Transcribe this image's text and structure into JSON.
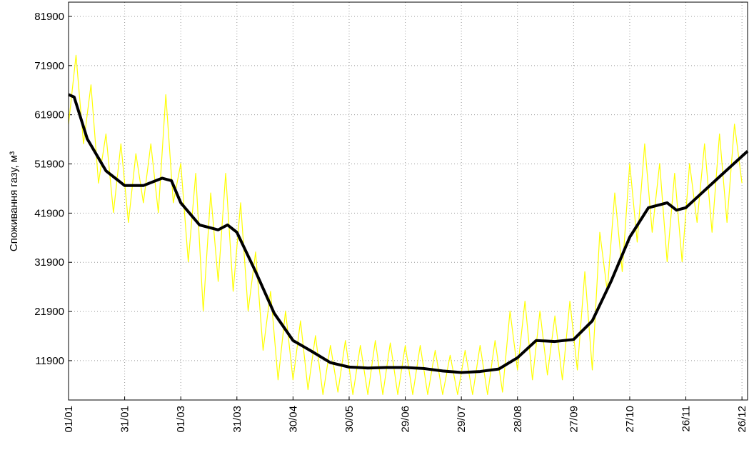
{
  "chart_data": {
    "type": "line",
    "y_label": "Споживання газу, м³",
    "xlim": [
      0,
      363
    ],
    "xticks": [
      {
        "value": 0,
        "label": "01/01"
      },
      {
        "value": 30,
        "label": "31/01"
      },
      {
        "value": 60,
        "label": "01/03"
      },
      {
        "value": 90,
        "label": "31/03"
      },
      {
        "value": 120,
        "label": "30/04"
      },
      {
        "value": 150,
        "label": "30/05"
      },
      {
        "value": 180,
        "label": "29/06"
      },
      {
        "value": 210,
        "label": "29/07"
      },
      {
        "value": 240,
        "label": "28/08"
      },
      {
        "value": 270,
        "label": "27/09"
      },
      {
        "value": 300,
        "label": "27/10"
      },
      {
        "value": 330,
        "label": "26/11"
      },
      {
        "value": 360,
        "label": "26/12"
      }
    ],
    "ylim": [
      3900,
      84800
    ],
    "yticks": [
      11900,
      21900,
      31900,
      41900,
      51900,
      61900,
      71900,
      81900
    ],
    "grid": true,
    "series": [
      {
        "color": "#ffff00",
        "width": 1.2,
        "x": [
          0,
          4,
          8,
          12,
          16,
          20,
          24,
          28,
          32,
          36,
          40,
          44,
          48,
          52,
          56,
          60,
          64,
          68,
          72,
          76,
          80,
          84,
          88,
          92,
          96,
          100,
          104,
          108,
          112,
          116,
          120,
          124,
          128,
          132,
          136,
          140,
          144,
          148,
          152,
          156,
          160,
          164,
          168,
          172,
          176,
          180,
          184,
          188,
          192,
          196,
          200,
          204,
          208,
          212,
          216,
          220,
          224,
          228,
          232,
          236,
          240,
          244,
          248,
          252,
          256,
          260,
          264,
          268,
          272,
          276,
          280,
          284,
          288,
          292,
          296,
          300,
          304,
          308,
          312,
          316,
          320,
          324,
          328,
          332,
          336,
          340,
          344,
          348,
          352,
          356,
          360
        ],
        "values": [
          60000,
          74000,
          56000,
          68000,
          48000,
          58000,
          42000,
          56000,
          40000,
          54000,
          44000,
          56000,
          42000,
          66000,
          44000,
          52000,
          32000,
          50000,
          22000,
          46000,
          28000,
          50000,
          26000,
          44000,
          22000,
          34000,
          14000,
          26000,
          8000,
          22000,
          8000,
          20000,
          6000,
          17000,
          5000,
          15000,
          5500,
          16000,
          5000,
          15000,
          5000,
          16000,
          5000,
          15500,
          5000,
          15000,
          5000,
          15000,
          5000,
          14000,
          5000,
          13000,
          5000,
          14000,
          5000,
          15000,
          5000,
          16000,
          5500,
          22000,
          10000,
          24000,
          8000,
          22000,
          9000,
          21000,
          8000,
          24000,
          10000,
          30000,
          10000,
          38000,
          26000,
          46000,
          30000,
          52000,
          36000,
          56000,
          38000,
          52000,
          32000,
          50000,
          32000,
          52000,
          40000,
          56000,
          38000,
          58000,
          40000,
          60000,
          48000
        ]
      },
      {
        "color": "#000000",
        "width": 4,
        "x": [
          0,
          3,
          10,
          20,
          30,
          40,
          50,
          55,
          60,
          70,
          80,
          85,
          90,
          100,
          110,
          120,
          130,
          140,
          150,
          160,
          170,
          180,
          190,
          200,
          210,
          220,
          230,
          240,
          250,
          260,
          270,
          280,
          290,
          300,
          310,
          320,
          325,
          330,
          340,
          350,
          363
        ],
        "values": [
          66000,
          65500,
          57000,
          50500,
          47500,
          47500,
          49000,
          48500,
          44000,
          39500,
          38500,
          39500,
          38000,
          30000,
          21500,
          16000,
          13800,
          11500,
          10600,
          10400,
          10500,
          10500,
          10300,
          9800,
          9500,
          9700,
          10200,
          12500,
          16000,
          15800,
          16200,
          20000,
          28000,
          37000,
          43000,
          44000,
          42500,
          43000,
          46500,
          50000,
          54500
        ]
      }
    ]
  }
}
